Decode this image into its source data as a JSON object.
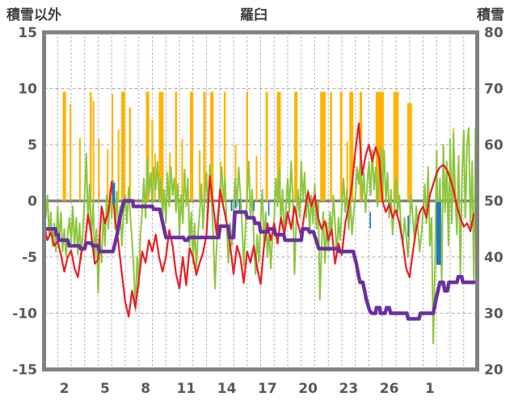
{
  "header": {
    "left_axis_title": "積雪以外",
    "title": "羅臼",
    "right_axis_title": "積雪"
  },
  "chart_data": {
    "type": "line",
    "title": "羅臼",
    "grid": true,
    "legend": "none",
    "left_axis": {
      "label": "積雪以外",
      "min": -15,
      "max": 15,
      "ticks": [
        15,
        10,
        5,
        0,
        -5,
        -10,
        -15
      ]
    },
    "right_axis": {
      "label": "積雪",
      "min": 20,
      "max": 80,
      "ticks": [
        80,
        70,
        60,
        50,
        40,
        30,
        20
      ]
    },
    "x_axis": {
      "days_shown": 32,
      "gridline_every_day": true,
      "ticks": [
        {
          "day": 2,
          "label": "2"
        },
        {
          "day": 5,
          "label": "5"
        },
        {
          "day": 8,
          "label": "8"
        },
        {
          "day": 11,
          "label": "11"
        },
        {
          "day": 14,
          "label": "14"
        },
        {
          "day": 17,
          "label": "17"
        },
        {
          "day": 20,
          "label": "20"
        },
        {
          "day": 23,
          "label": "23"
        },
        {
          "day": 26,
          "label": "26"
        },
        {
          "day": 29,
          "label": "1"
        }
      ]
    },
    "colors": {
      "orange_bars": "#FFB300",
      "blue_bars": "#1F78C1",
      "green_line": "#8CC63E",
      "red_line": "#EC1C24",
      "purple_line": "#6B30A0",
      "axis_border": "#808080",
      "zero_line": "#808080",
      "gridline": "#ABABAB",
      "tick_text": "#595959"
    },
    "series": [
      {
        "name": "precipitation-orange",
        "type": "bar",
        "axis": "left",
        "baseline": 0,
        "bars": [
          [
            2.5,
            9.7,
            0.25
          ],
          [
            2.95,
            8.6,
            0.12
          ],
          [
            3.65,
            5.6,
            0.12
          ],
          [
            4.45,
            9.7,
            0.15
          ],
          [
            4.65,
            8.9,
            0.12
          ],
          [
            5.05,
            5.5,
            0.12
          ],
          [
            5.7,
            4.6,
            0.12
          ],
          [
            6.05,
            9.5,
            0.12
          ],
          [
            6.5,
            6.3,
            0.12
          ],
          [
            6.85,
            9.7,
            0.3
          ],
          [
            7.35,
            8.3,
            0.15
          ],
          [
            8.65,
            9.7,
            0.25
          ],
          [
            9.0,
            7.2,
            0.12
          ],
          [
            9.2,
            4.2,
            0.12
          ],
          [
            9.65,
            9.7,
            0.35
          ],
          [
            10.3,
            4.3,
            0.12
          ],
          [
            10.75,
            9.7,
            0.15
          ],
          [
            11.2,
            5.5,
            0.12
          ],
          [
            11.9,
            9.7,
            0.25
          ],
          [
            12.5,
            4.5,
            0.12
          ],
          [
            12.85,
            9.7,
            0.18
          ],
          [
            13.4,
            9.7,
            0.25
          ],
          [
            14.05,
            3.5,
            0.12
          ],
          [
            14.35,
            9.7,
            0.15
          ],
          [
            15.15,
            5.0,
            0.12
          ],
          [
            16.0,
            9.7,
            0.15
          ],
          [
            16.7,
            4.0,
            0.12
          ],
          [
            17.45,
            9.7,
            0.18
          ],
          [
            18.35,
            9.7,
            0.3
          ],
          [
            19.6,
            9.7,
            0.25
          ],
          [
            21.6,
            9.7,
            0.4
          ],
          [
            22.2,
            9.7,
            0.15
          ],
          [
            22.95,
            9.7,
            0.18
          ],
          [
            23.4,
            5.3,
            0.12
          ],
          [
            23.7,
            9.7,
            0.3
          ],
          [
            24.4,
            9.7,
            0.18
          ],
          [
            25.8,
            9.7,
            0.6
          ],
          [
            27.0,
            9.7,
            0.4
          ],
          [
            28.0,
            8.7,
            0.35
          ],
          [
            31.25,
            6.5,
            0.1
          ]
        ]
      },
      {
        "name": "precipitation-blue",
        "type": "bar",
        "axis": "left",
        "bars": [
          [
            6.15,
            1.6,
            -0.3,
            0.2
          ],
          [
            14.85,
            0.1,
            -0.9,
            0.12
          ],
          [
            15.15,
            0.1,
            -0.7,
            0.1
          ],
          [
            15.45,
            0.2,
            -1.1,
            0.1
          ],
          [
            16.5,
            -0.1,
            -0.9,
            0.1
          ],
          [
            17.6,
            -0.1,
            -1.3,
            0.1
          ],
          [
            25.1,
            -1.0,
            -2.45,
            0.1
          ],
          [
            27.9,
            -1.3,
            -3.2,
            0.1
          ],
          [
            30.15,
            -0.1,
            -5.7,
            0.35
          ]
        ]
      },
      {
        "name": "green-line",
        "type": "line",
        "axis": "left",
        "points_per_day": 8,
        "start_day": 1,
        "values": [
          2.0,
          -1.5,
          0.5,
          -3.0,
          -1.0,
          -4.0,
          -2.0,
          -4.5,
          -0.5,
          -3.5,
          -1.0,
          -4.5,
          -2.5,
          -5.0,
          -3.0,
          -1.5,
          -3.8,
          -0.5,
          -4.0,
          -1.5,
          -4.8,
          -2.0,
          -5.2,
          -2.5,
          0.5,
          4.2,
          -2.0,
          1.5,
          -3.5,
          0.0,
          -5.0,
          -2.5,
          -8.2,
          -3.0,
          -5.5,
          -1.0,
          -4.0,
          0.5,
          -2.5,
          1.0,
          -1.5,
          1.8,
          -2.5,
          0.8,
          -3.0,
          -0.5,
          -4.0,
          -1.0,
          0.5,
          -2.0,
          1.2,
          -1.5,
          -3.5,
          -6.0,
          -9.8,
          -5.0,
          -7.5,
          -3.0,
          -1.0,
          2.0,
          -1.5,
          3.8,
          0.5,
          2.5,
          -0.5,
          3.0,
          1.0,
          3.5,
          0.0,
          2.0,
          -1.5,
          1.0,
          -2.0,
          2.5,
          -0.5,
          3.0,
          0.5,
          2.0,
          -1.0,
          1.5,
          -3.0,
          0.5,
          -2.0,
          2.8,
          -0.5,
          2.0,
          -4.0,
          -1.0,
          -5.5,
          -2.0,
          -6.3,
          -3.0,
          -1.0,
          1.5,
          -2.5,
          0.5,
          2.5,
          -1.0,
          3.2,
          0.0,
          -3.0,
          -7.8,
          -4.0,
          -1.5,
          1.0,
          3.0,
          0.0,
          2.0,
          -2.5,
          -5.5,
          -2.0,
          -4.0,
          -1.0,
          2.0,
          -0.5,
          3.0,
          0.5,
          -2.0,
          -5.8,
          -2.5,
          0.5,
          3.5,
          -1.5,
          1.0,
          -3.5,
          -6.5,
          -3.0,
          -5.5,
          -2.0,
          1.0,
          -4.0,
          -1.0,
          -5.0,
          -2.5,
          -6.0,
          -3.0,
          -1.5,
          2.0,
          -0.5,
          3.0,
          -2.0,
          1.0,
          -3.5,
          -0.5,
          2.0,
          -1.0,
          3.5,
          0.5,
          -6.5,
          -2.0,
          1.0,
          -1.5,
          3.5,
          0.0,
          2.5,
          -1.5,
          1.0,
          -3.0,
          0.5,
          -2.0,
          1.5,
          -2.5,
          0.0,
          -8.8,
          -4.0,
          -1.0,
          -5.5,
          -2.0,
          -4.5,
          -1.0,
          -3.0,
          0.5,
          -2.0,
          -5.0,
          -1.5,
          -3.5,
          -0.5,
          2.0,
          -1.0,
          1.0,
          -2.5,
          0.0,
          -3.0,
          -1.0,
          0.5,
          3.0,
          1.5,
          4.0,
          0.0,
          2.5,
          -1.0,
          1.5,
          3.5,
          0.5,
          4.5,
          1.0,
          3.0,
          -0.5,
          2.0,
          4.8,
          1.0,
          4.5,
          0.0,
          2.5,
          -1.5,
          1.0,
          -3.0,
          -0.5,
          2.0,
          -1.0,
          0.5,
          -2.5,
          -4.0,
          -1.5,
          -3.0,
          -5.0,
          -2.0,
          0.5,
          -1.5,
          -3.5,
          -0.5,
          -2.5,
          -4.5,
          -3.0,
          -1.0,
          1.5,
          -2.0,
          3.0,
          -4.0,
          -1.5,
          -12.7,
          -6.0,
          4.5,
          -3.5,
          2.0,
          -7.5,
          5.0,
          -1.0,
          3.5,
          -4.0,
          5.5,
          -2.0,
          6.0,
          0.5,
          -3.0,
          4.0,
          -6.5,
          2.0,
          6.3,
          -1.5,
          5.0,
          6.5,
          -2.5,
          3.5,
          -7.0,
          6.5
        ]
      },
      {
        "name": "red-line",
        "type": "line",
        "axis": "left",
        "points_per_day": 4,
        "start_day": 1,
        "values": [
          -2.2,
          -3.5,
          -2.8,
          -4.0,
          -3.6,
          -4.8,
          -6.3,
          -5.0,
          -4.4,
          -6.0,
          -6.8,
          -4.6,
          -4.0,
          -1.2,
          -3.0,
          -5.6,
          -5.2,
          -0.5,
          -2.0,
          -1.0,
          1.7,
          -1.5,
          -3.8,
          -6.5,
          -9.0,
          -10.3,
          -8.0,
          -9.5,
          -7.0,
          -4.5,
          -5.5,
          -3.5,
          -4.5,
          -3.0,
          -5.0,
          -6.3,
          -5.0,
          -2.6,
          -4.0,
          -6.5,
          -7.8,
          -5.0,
          -7.5,
          -4.2,
          -5.0,
          -6.6,
          -5.5,
          -4.6,
          -3.0,
          2.2,
          -0.5,
          -3.0,
          1.0,
          -0.5,
          -2.0,
          -4.0,
          -6.5,
          -4.0,
          -5.0,
          -7.3,
          -4.5,
          -5.5,
          -4.0,
          -6.0,
          -7.4,
          -4.0,
          -2.0,
          -3.5,
          -2.0,
          -3.8,
          -1.5,
          -3.0,
          -1.0,
          -2.5,
          -0.5,
          -2.0,
          -3.2,
          -1.0,
          0.8,
          -0.5,
          0.5,
          -1.5,
          -2.5,
          -1.8,
          -3.5,
          -2.5,
          -5.6,
          -3.8,
          -4.8,
          -2.0,
          -0.5,
          1.5,
          4.5,
          6.9,
          2.3,
          4.0,
          5.0,
          3.5,
          4.8,
          3.8,
          0.0,
          -1.0,
          -0.3,
          -1.5,
          -0.8,
          -2.0,
          -3.7,
          -6.0,
          -6.8,
          -4.5,
          -2.5,
          -1.0,
          -0.5,
          -1.5,
          0.5,
          1.5,
          2.5,
          3.0,
          3.2,
          2.8,
          2.0,
          1.0,
          -0.5,
          -1.5,
          -2.3,
          -2.0,
          -2.7,
          -1.2
        ]
      },
      {
        "name": "snow-depth-purple",
        "type": "step-line",
        "axis": "right",
        "unit": "cm",
        "points": [
          [
            1,
            45
          ],
          [
            1.85,
            45
          ],
          [
            1.9,
            44
          ],
          [
            2.05,
            44
          ],
          [
            2.1,
            43
          ],
          [
            2.75,
            43
          ],
          [
            2.85,
            42
          ],
          [
            3.6,
            42
          ],
          [
            3.7,
            41.5
          ],
          [
            4.0,
            41.5
          ],
          [
            4.1,
            42.5
          ],
          [
            4.5,
            42.5
          ],
          [
            4.6,
            42
          ],
          [
            5.0,
            42
          ],
          [
            5.1,
            41
          ],
          [
            6.1,
            41
          ],
          [
            6.4,
            44
          ],
          [
            6.65,
            47.5
          ],
          [
            6.9,
            50
          ],
          [
            7.55,
            50
          ],
          [
            7.6,
            49
          ],
          [
            9.0,
            49
          ],
          [
            9.1,
            48.5
          ],
          [
            9.55,
            48.5
          ],
          [
            10.0,
            43.5
          ],
          [
            11.3,
            43.5
          ],
          [
            11.4,
            43
          ],
          [
            11.6,
            43
          ],
          [
            11.7,
            43.5
          ],
          [
            13.9,
            43.5
          ],
          [
            14.0,
            45.5
          ],
          [
            14.6,
            45.5
          ],
          [
            14.7,
            43.5
          ],
          [
            15.0,
            43.5
          ],
          [
            15.1,
            48
          ],
          [
            15.9,
            48
          ],
          [
            16.0,
            47
          ],
          [
            16.5,
            47
          ],
          [
            16.6,
            46
          ],
          [
            16.9,
            46
          ],
          [
            17.0,
            44.5
          ],
          [
            17.5,
            44.5
          ],
          [
            17.6,
            45
          ],
          [
            18.0,
            45
          ],
          [
            18.1,
            44
          ],
          [
            18.7,
            44
          ],
          [
            18.8,
            43
          ],
          [
            20.0,
            43
          ],
          [
            20.1,
            45
          ],
          [
            20.5,
            45
          ],
          [
            20.6,
            44.5
          ],
          [
            20.9,
            44.5
          ],
          [
            21.1,
            43
          ],
          [
            21.3,
            41.5
          ],
          [
            22.7,
            41.5
          ],
          [
            22.8,
            41
          ],
          [
            23.85,
            41
          ],
          [
            24.1,
            38.5
          ],
          [
            24.25,
            36.5
          ],
          [
            24.35,
            35.5
          ],
          [
            24.55,
            35.5
          ],
          [
            24.8,
            32.5
          ],
          [
            25.05,
            30.5
          ],
          [
            25.2,
            30
          ],
          [
            25.5,
            30
          ],
          [
            25.55,
            31
          ],
          [
            25.8,
            31
          ],
          [
            25.85,
            30
          ],
          [
            26.2,
            30
          ],
          [
            26.3,
            31
          ],
          [
            26.5,
            31
          ],
          [
            26.6,
            30
          ],
          [
            27.8,
            30
          ],
          [
            27.9,
            29
          ],
          [
            28.7,
            29
          ],
          [
            28.8,
            30
          ],
          [
            29.75,
            30
          ],
          [
            30.0,
            33
          ],
          [
            30.25,
            35.5
          ],
          [
            30.5,
            35.5
          ],
          [
            30.6,
            34
          ],
          [
            30.8,
            34
          ],
          [
            30.9,
            35.5
          ],
          [
            31.5,
            35.5
          ],
          [
            31.6,
            36.5
          ],
          [
            31.85,
            36.5
          ],
          [
            31.95,
            35.5
          ],
          [
            33,
            35.5
          ]
        ]
      }
    ]
  }
}
